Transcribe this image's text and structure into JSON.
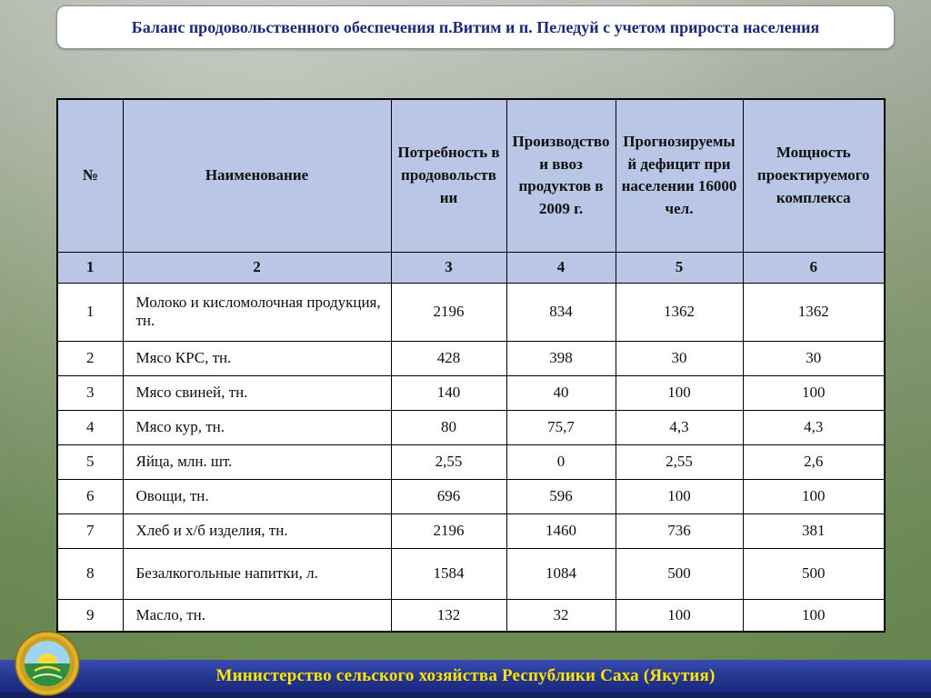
{
  "slide": {
    "title": "Баланс продовольственного обеспечения п.Витим и п. Пеледуй с учетом прироста населения",
    "footer": "Министерство сельского хозяйства Республики Саха (Якутия)"
  },
  "table": {
    "headers": [
      "№",
      "Наименование",
      "Потребность в продовольствии",
      "Производство и ввоз продуктов в 2009 г.",
      "Прогнозируемый дефицит при населении 16000 чел.",
      "Мощность проектируемого комплекса"
    ],
    "column_numbers": [
      "1",
      "2",
      "3",
      "4",
      "5",
      "6"
    ],
    "rows": [
      [
        "1",
        "Молоко и кисломолочная продукция, тн.",
        "2196",
        "834",
        "1362",
        "1362"
      ],
      [
        "2",
        "Мясо КРС, тн.",
        "428",
        "398",
        "30",
        "30"
      ],
      [
        "3",
        "Мясо свиней, тн.",
        "140",
        "40",
        "100",
        "100"
      ],
      [
        "4",
        "Мясо кур, тн.",
        "80",
        "75,7",
        "4,3",
        "4,3"
      ],
      [
        "5",
        "Яйца, млн. шт.",
        "2,55",
        "0",
        "2,55",
        "2,6"
      ],
      [
        "6",
        "Овощи, тн.",
        "696",
        "596",
        "100",
        "100"
      ],
      [
        "7",
        "Хлеб и х/б изделия, тн.",
        "2196",
        "1460",
        "736",
        "381"
      ],
      [
        "8",
        "Безалкогольные напитки, л.",
        "1584",
        "1084",
        "500",
        "500"
      ],
      [
        "9",
        "Масло, тн.",
        "132",
        "32",
        "100",
        "100"
      ]
    ]
  },
  "icons": {
    "logo": "ministry-emblem"
  },
  "colors": {
    "header_bg": "#b9c6e5",
    "title_text": "#1b2a78",
    "footer_bg": "#243490",
    "footer_text": "#ffe600",
    "table_border": "#000000"
  }
}
